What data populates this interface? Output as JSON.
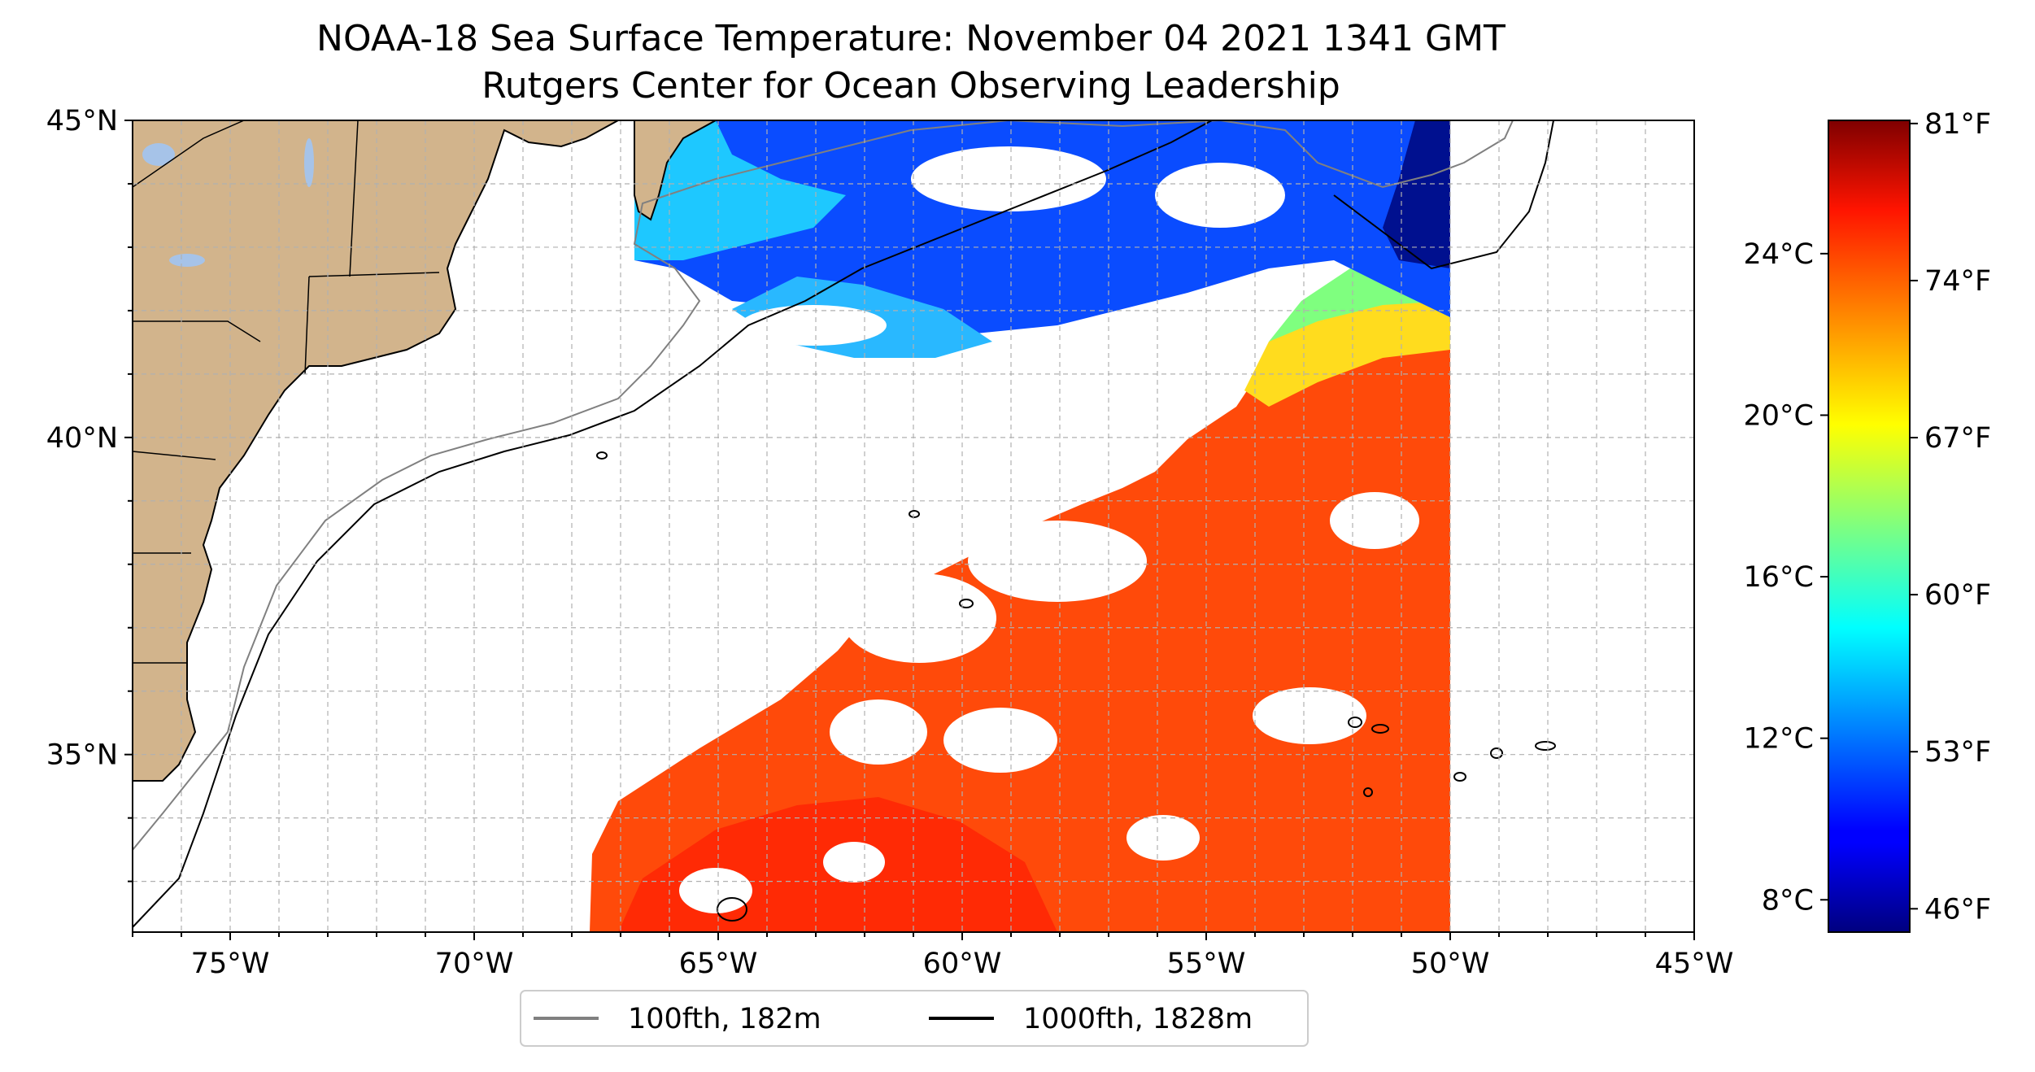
{
  "title": "NOAA-18 Sea Surface Temperature: November 04 2021 1341 GMT",
  "subtitle": "Rutgers Center for Ocean Observing Leadership",
  "map": {
    "type": "sea_surface_temperature_map",
    "lon_range": [
      -77,
      -45
    ],
    "lat_range": [
      32.2,
      45
    ],
    "grid": true,
    "lon_ticks": [
      {
        "value": -75,
        "label": "75°W"
      },
      {
        "value": -70,
        "label": "70°W"
      },
      {
        "value": -65,
        "label": "65°W"
      },
      {
        "value": -60,
        "label": "60°W"
      },
      {
        "value": -55,
        "label": "55°W"
      },
      {
        "value": -50,
        "label": "50°W"
      },
      {
        "value": -45,
        "label": "45°W"
      }
    ],
    "lat_ticks": [
      {
        "value": 45,
        "label": "45°N"
      },
      {
        "value": 40,
        "label": "40°N"
      },
      {
        "value": 35,
        "label": "35°N"
      }
    ],
    "colors": {
      "land": "#d2b48c",
      "lakes": "#a6c3e8",
      "grid": "#b0b0b0"
    }
  },
  "legend": {
    "placement": "bottom-center",
    "entries": [
      {
        "label": "100fth, 182m",
        "color": "#808080"
      },
      {
        "label": "1000fth, 1828m",
        "color": "#000000"
      }
    ]
  },
  "colorbar": {
    "colormap": "jet",
    "celsius_range": [
      7.2,
      27.3
    ],
    "celsius_ticks": [
      {
        "value": 8,
        "label": "8°C"
      },
      {
        "value": 12,
        "label": "12°C"
      },
      {
        "value": 16,
        "label": "16°C"
      },
      {
        "value": 20,
        "label": "20°C"
      },
      {
        "value": 24,
        "label": "24°C"
      }
    ],
    "fahrenheit_ticks": [
      {
        "value": 46,
        "label": "46°F"
      },
      {
        "value": 53,
        "label": "53°F"
      },
      {
        "value": 60,
        "label": "60°F"
      },
      {
        "value": 67,
        "label": "67°F"
      },
      {
        "value": 74,
        "label": "74°F"
      },
      {
        "value": 81,
        "label": "81°F"
      }
    ]
  }
}
